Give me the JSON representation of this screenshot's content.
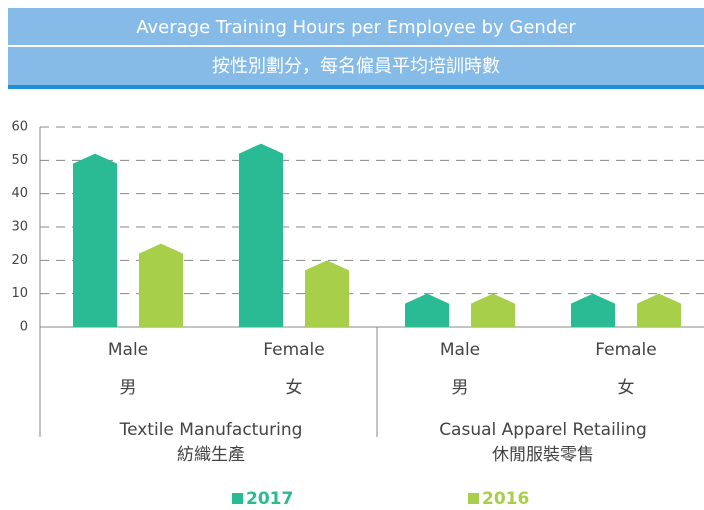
{
  "chart_data": {
    "type": "bar",
    "title": "Average Training Hours per Employee by Gender",
    "subtitle": "按性別劃分，每名僱員平均培訓時數",
    "categories": [
      "Male",
      "Female",
      "Male",
      "Female"
    ],
    "categories_zh": [
      "男",
      "女",
      "男",
      "女"
    ],
    "groups": [
      {
        "name": "Textile Manufacturing",
        "name_zh": "紡織生產"
      },
      {
        "name": "Casual Apparel Retailing",
        "name_zh": "休閒服裝零售"
      }
    ],
    "series": [
      {
        "name": "2017",
        "color": "#2bbb94",
        "values": [
          52,
          55,
          10,
          10
        ]
      },
      {
        "name": "2016",
        "color": "#a8cf4a",
        "values": [
          25,
          20,
          10,
          10
        ]
      }
    ],
    "ylim": [
      0,
      60
    ],
    "yticks": [
      0,
      10,
      20,
      30,
      40,
      50,
      60
    ],
    "grid": true,
    "legend": "bottom"
  }
}
